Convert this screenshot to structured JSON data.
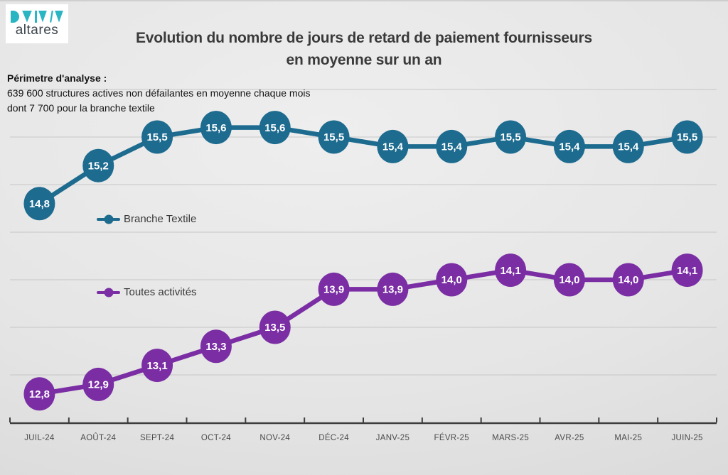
{
  "logo": {
    "brand": "altares",
    "glyph_color": "#2ab5c3"
  },
  "title": {
    "line1": "Evolution du nombre de jours de retard de paiement fournisseurs",
    "line2": "en moyenne sur un an"
  },
  "perimetre": {
    "heading": "Périmetre d'analyse :",
    "line1": "639 600 structures actives non défailantes en moyenne chaque mois",
    "line2": "dont 7 700 pour la branche textile"
  },
  "chart_data": {
    "type": "line",
    "title": "Evolution du nombre de jours de retard de paiement fournisseurs en moyenne sur un an",
    "categories": [
      "JUIL-24",
      "AOÛT-24",
      "SEPT-24",
      "OCT-24",
      "NOV-24",
      "DÉC-24",
      "JANV-25",
      "FÉVR-25",
      "MARS-25",
      "AVR-25",
      "MAI-25",
      "JUIN-25"
    ],
    "series": [
      {
        "name": "Branche Textile",
        "color": "#1d6b8f",
        "values": [
          14.8,
          15.2,
          15.5,
          15.6,
          15.6,
          15.5,
          15.4,
          15.4,
          15.5,
          15.4,
          15.4,
          15.5
        ],
        "labels": [
          "14,8",
          "15,2",
          "15,5",
          "15,6",
          "15,6",
          "15,5",
          "15,4",
          "15,4",
          "15,5",
          "15,4",
          "15,4",
          "15,5"
        ]
      },
      {
        "name": "Toutes activités",
        "color": "#7b2ea4",
        "values": [
          12.8,
          12.9,
          13.1,
          13.3,
          13.5,
          13.9,
          13.9,
          14.0,
          14.1,
          14.0,
          14.0,
          14.1
        ],
        "labels": [
          "12,8",
          "12,9",
          "13,1",
          "13,3",
          "13,5",
          "13,9",
          "13,9",
          "14,0",
          "14,1",
          "14,0",
          "14,0",
          "14,1"
        ]
      }
    ],
    "xlabel": "",
    "ylabel": "",
    "ylim": [
      12.5,
      16.0
    ],
    "gridline_step": 0.5,
    "grid": true,
    "y_axis_labels_visible": false,
    "legend_position": "inside-left",
    "value_labels": "on-markers",
    "axis_line_color": "#3d3d3d",
    "gridline_color": "#bfbfbf",
    "tick_label_color": "#4c4c4c",
    "value_label_color": "#ffffff"
  }
}
